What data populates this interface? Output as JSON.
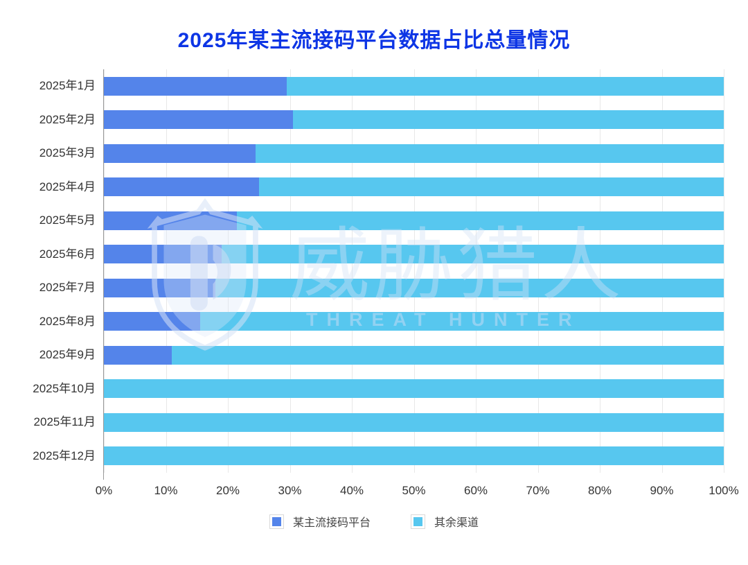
{
  "title": "2025年某主流接码平台数据占比总量情况",
  "watermark": {
    "cn": "威胁猎人",
    "en": "THREAT HUNTER"
  },
  "colors": {
    "title": "#0D35E5",
    "bar_platform": "#5484EA",
    "bar_other": "#57C7EF",
    "axis_label": "#333333",
    "grid_line": "#E8E8E8",
    "axis_line": "#999999",
    "legend_text": "#444444",
    "watermark": "rgba(213,226,246,0.42)"
  },
  "chart_data": {
    "type": "bar",
    "orientation": "horizontal",
    "stacked": true,
    "title": "2025年某主流接码平台数据占比总量情况",
    "categories": [
      "2025年1月",
      "2025年2月",
      "2025年3月",
      "2025年4月",
      "2025年5月",
      "2025年6月",
      "2025年7月",
      "2025年8月",
      "2025年9月",
      "2025年10月",
      "2025年11月",
      "2025年12月"
    ],
    "series": [
      {
        "name": "某主流接码平台",
        "color": "#5484EA",
        "values": [
          29.5,
          30.5,
          24.5,
          25,
          21.5,
          19,
          18,
          15.5,
          11,
          0,
          0,
          0
        ]
      },
      {
        "name": "其余渠道",
        "color": "#57C7EF",
        "values": [
          70.5,
          69.5,
          75.5,
          75,
          78.5,
          81,
          82,
          84.5,
          89,
          100,
          100,
          100
        ]
      }
    ],
    "x_ticks": [
      "0%",
      "10%",
      "20%",
      "30%",
      "40%",
      "50%",
      "60%",
      "70%",
      "80%",
      "90%",
      "100%"
    ],
    "xlim": [
      0,
      100
    ],
    "xlabel": "",
    "ylabel": "",
    "grid": true,
    "legend_position": "bottom"
  }
}
